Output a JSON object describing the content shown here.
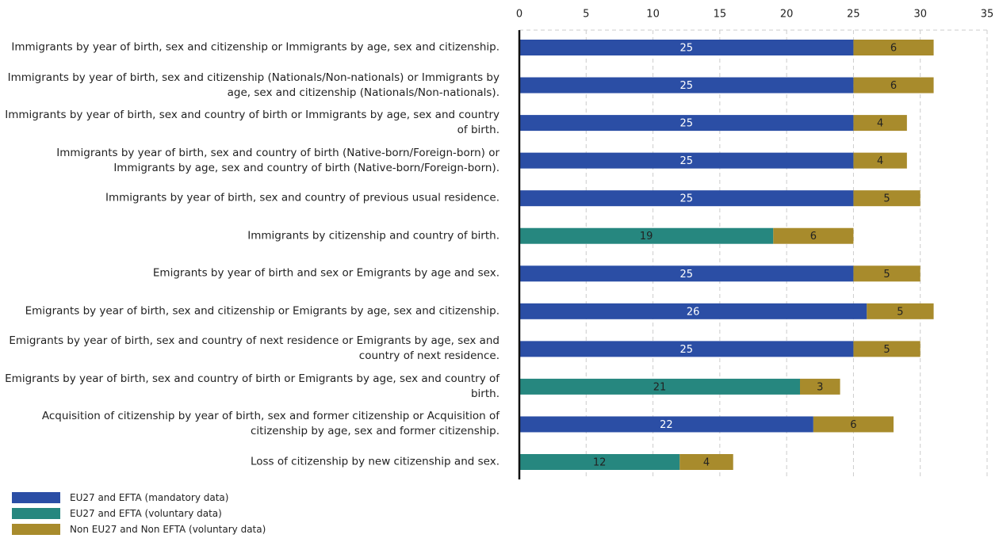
{
  "chart_data": {
    "type": "stacked-barh",
    "categories": [
      "Immigrants by year of birth, sex and citizenship or Immigrants by age, sex and citizenship.",
      "Immigrants by year of birth, sex and citizenship (Nationals/Non-nationals) or Immigrants by age, sex and citizenship (Nationals/Non-nationals).",
      "Immigrants by year of birth, sex and country of birth or Immigrants by age, sex and country of birth.",
      "Immigrants by year of birth, sex and country of birth (Native-born/Foreign-born) or Immigrants by age, sex and country of birth (Native-born/Foreign-born).",
      "Immigrants by year of birth, sex and country of previous usual residence.",
      "Immigrants by citizenship and country of birth.",
      "Emigrants by year of birth and sex or Emigrants by age and sex.",
      "Emigrants by year of birth, sex and citizenship or Emigrants by age, sex and citizenship.",
      "Emigrants by year of birth, sex and country of next residence or Emigrants by age, sex and country of next residence.",
      "Emigrants by year of birth, sex and country of birth or Emigrants by age, sex and country of birth.",
      "Acquisition of citizenship by year of birth, sex and former citizenship or Acquisition of citizenship by age, sex and former citizenship.",
      "Loss of citizenship by new citizenship and sex."
    ],
    "series": [
      {
        "name": "EU27 and EFTA (mandatory data)",
        "color": "#2b4ea5",
        "values": [
          25,
          25,
          25,
          25,
          25,
          null,
          25,
          26,
          25,
          null,
          22,
          null
        ]
      },
      {
        "name": "EU27 and EFTA (voluntary data)",
        "color": "#26877f",
        "values": [
          null,
          null,
          null,
          null,
          null,
          19,
          null,
          null,
          null,
          21,
          null,
          12
        ]
      },
      {
        "name": "Non EU27 and Non EFTA (voluntary data)",
        "color": "#a88b2c",
        "values": [
          6,
          6,
          4,
          4,
          5,
          6,
          5,
          5,
          5,
          3,
          6,
          4
        ]
      }
    ],
    "xlim": [
      0,
      35
    ],
    "xticks": [
      0,
      5,
      10,
      15,
      20,
      25,
      30,
      35
    ],
    "grid": true
  }
}
